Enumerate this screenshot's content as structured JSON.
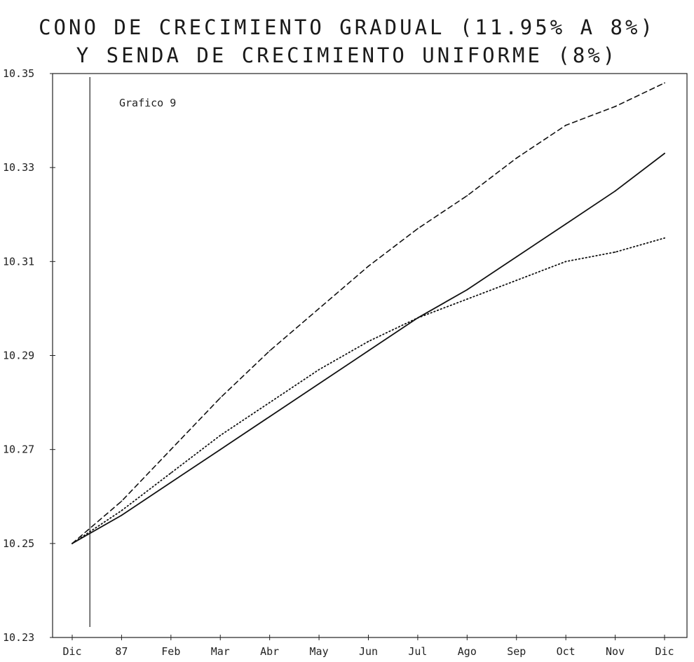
{
  "chart_data": {
    "type": "line",
    "title": "CONO DE CRECIMIENTO GRADUAL (11.95% A 8%)",
    "subtitle": "Y SENDA DE CRECIMIENTO UNIFORME (8%)",
    "annotation": "Grafico 9",
    "xlabel": "",
    "ylabel": "",
    "categories": [
      "Dic",
      "87",
      "Feb",
      "Mar",
      "Abr",
      "May",
      "Jun",
      "Jul",
      "Ago",
      "Sep",
      "Oct",
      "Nov",
      "Dic"
    ],
    "yticks": [
      "10.23",
      "10.25",
      "10.27",
      "10.29",
      "10.31",
      "10.33",
      "10.35"
    ],
    "ylim": [
      10.23,
      10.35
    ],
    "grid": false,
    "vertical_marker_after_category": "Dic",
    "series": [
      {
        "style": "dashed",
        "values": [
          10.25,
          10.259,
          10.27,
          10.281,
          10.291,
          10.3,
          10.309,
          10.317,
          10.324,
          10.332,
          10.339,
          10.343,
          10.348
        ]
      },
      {
        "style": "solid",
        "values": [
          10.25,
          10.256,
          10.263,
          10.27,
          10.277,
          10.284,
          10.291,
          10.298,
          10.304,
          10.311,
          10.318,
          10.325,
          10.333
        ]
      },
      {
        "style": "dotted",
        "values": [
          10.25,
          10.257,
          10.265,
          10.273,
          10.28,
          10.287,
          10.293,
          10.298,
          10.302,
          10.306,
          10.31,
          10.312,
          10.315
        ]
      }
    ]
  }
}
